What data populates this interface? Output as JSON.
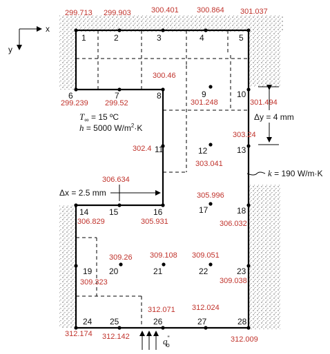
{
  "axes": {
    "x_label": "x",
    "y_label": "y"
  },
  "nodes": [
    {
      "id": "1",
      "label": "1",
      "temp": "299.713"
    },
    {
      "id": "2",
      "label": "2",
      "temp": "299.903"
    },
    {
      "id": "3",
      "label": "3",
      "temp": "300.401"
    },
    {
      "id": "4",
      "label": "4",
      "temp": "300.864"
    },
    {
      "id": "5",
      "label": "5",
      "temp": "301.037"
    },
    {
      "id": "6",
      "label": "6",
      "temp": "299.239"
    },
    {
      "id": "7",
      "label": "7",
      "temp": "299.52"
    },
    {
      "id": "8",
      "label": "8",
      "temp": "300.46"
    },
    {
      "id": "9",
      "label": "9",
      "temp": "301.248"
    },
    {
      "id": "10",
      "label": "10",
      "temp": "301.494"
    },
    {
      "id": "11",
      "label": "11",
      "temp": "302.4"
    },
    {
      "id": "12",
      "label": "12",
      "temp": "303.041"
    },
    {
      "id": "13",
      "label": "13",
      "temp": "303.24"
    },
    {
      "id": "14",
      "label": "14",
      "temp": "306.829"
    },
    {
      "id": "15",
      "label": "15",
      "temp": "306.634"
    },
    {
      "id": "16",
      "label": "16",
      "temp": "305.931"
    },
    {
      "id": "17",
      "label": "17",
      "temp": "305.996"
    },
    {
      "id": "18",
      "label": "18",
      "temp": "306.032"
    },
    {
      "id": "19",
      "label": "19",
      "temp": "309.323"
    },
    {
      "id": "20",
      "label": "20",
      "temp": "309.26"
    },
    {
      "id": "21",
      "label": "21",
      "temp": "309.108"
    },
    {
      "id": "22",
      "label": "22",
      "temp": "309.051"
    },
    {
      "id": "23",
      "label": "23",
      "temp": "309.038"
    },
    {
      "id": "24",
      "label": "24",
      "temp": "312.174"
    },
    {
      "id": "25",
      "label": "25",
      "temp": "312.142"
    },
    {
      "id": "26",
      "label": "26",
      "temp": "312.071"
    },
    {
      "id": "27",
      "label": "27",
      "temp": "312.024"
    },
    {
      "id": "28",
      "label": "28",
      "temp": "312.009"
    }
  ],
  "annotations": {
    "t_inf_symbol": "T",
    "t_inf_sub": "∞",
    "t_inf_value": " = 15 ºC",
    "h_symbol": "h",
    "h_value": " = 5000 W/m",
    "h_exp": "2",
    "h_unit": "·K",
    "dy": "Δy = 4 mm",
    "dx": "Δx = 2.5 mm",
    "k_symbol": "k",
    "k_value": " = 190 W/m·K",
    "q_symbol": "q",
    "q_sup": "\"",
    "q_sub": "o"
  }
}
